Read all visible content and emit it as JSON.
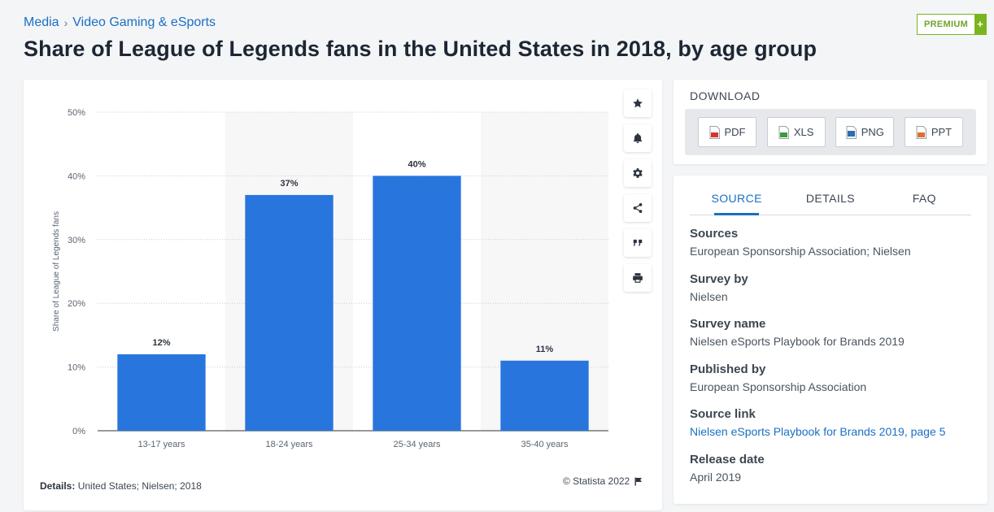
{
  "breadcrumb": {
    "root": "Media",
    "separator": "›",
    "category": "Video Gaming & eSports"
  },
  "title": "Share of League of Legends fans in the United States in 2018, by age group",
  "premium": {
    "label": "PREMIUM",
    "plus": "+"
  },
  "chart_data": {
    "type": "bar",
    "categories": [
      "13-17 years",
      "18-24 years",
      "25-34 years",
      "35-40 years"
    ],
    "values": [
      12,
      37,
      40,
      11
    ],
    "value_suffix": "%",
    "title": "Share of League of Legends fans in the United States in 2018, by age group",
    "xlabel": "",
    "ylabel": "Share of League of Legends fans",
    "ylim": [
      0,
      50
    ],
    "yticks": [
      "0%",
      "10%",
      "20%",
      "30%",
      "40%",
      "50%"
    ],
    "grid": true,
    "color": "#2876dd"
  },
  "details": {
    "label": "Details:",
    "text": "United States; Nielsen; 2018"
  },
  "copyright": "© Statista 2022",
  "toolbar": [
    "star-icon",
    "bell-icon",
    "gear-icon",
    "share-icon",
    "quote-icon",
    "print-icon"
  ],
  "download": {
    "title": "DOWNLOAD",
    "buttons": [
      {
        "label": "PDF",
        "color": "#d9342b"
      },
      {
        "label": "XLS",
        "color": "#3e9a3e"
      },
      {
        "label": "PNG",
        "color": "#2a6db4"
      },
      {
        "label": "PPT",
        "color": "#e0702a"
      }
    ]
  },
  "tabs": [
    "SOURCE",
    "DETAILS",
    "FAQ"
  ],
  "source_info": [
    {
      "label": "Sources",
      "value": "European Sponsorship Association; Nielsen",
      "link": false
    },
    {
      "label": "Survey by",
      "value": "Nielsen",
      "link": false
    },
    {
      "label": "Survey name",
      "value": "Nielsen eSports Playbook for Brands 2019",
      "link": false
    },
    {
      "label": "Published by",
      "value": "European Sponsorship Association",
      "link": false
    },
    {
      "label": "Source link",
      "value": "Nielsen eSports Playbook for Brands 2019, page 5",
      "link": true
    },
    {
      "label": "Release date",
      "value": "April 2019",
      "link": false
    }
  ]
}
